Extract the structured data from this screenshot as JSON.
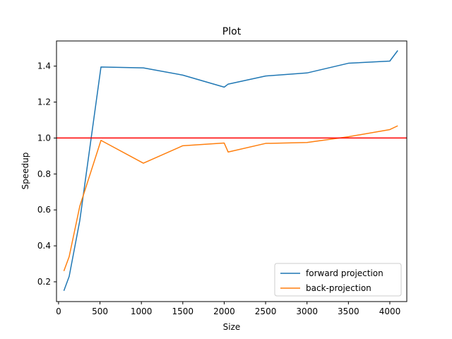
{
  "chart_data": {
    "type": "line",
    "title": "Plot",
    "xlabel": "Size",
    "ylabel": "Speedup",
    "xlim": [
      -25,
      4205
    ],
    "ylim": [
      0.09,
      1.54
    ],
    "xticks": [
      0,
      500,
      1000,
      1500,
      2000,
      2500,
      3000,
      3500,
      4000
    ],
    "yticks": [
      0.2,
      0.4,
      0.6,
      0.8,
      1.0,
      1.2,
      1.4
    ],
    "ytick_labels": [
      "0.2",
      "0.4",
      "0.6",
      "0.8",
      "1.0",
      "1.2",
      "1.4"
    ],
    "grid": false,
    "legend_position": "lower-right",
    "reference_line": {
      "y": 1.0,
      "color": "#ff0000"
    },
    "series": [
      {
        "name": "forward projection",
        "color": "#1f77b4",
        "x": [
          64,
          128,
          256,
          512,
          1024,
          1500,
          2000,
          2048,
          2500,
          3000,
          3500,
          4000,
          4096
        ],
        "y": [
          0.15,
          0.23,
          0.54,
          1.395,
          1.39,
          1.35,
          1.283,
          1.3,
          1.345,
          1.362,
          1.416,
          1.428,
          1.487
        ]
      },
      {
        "name": "back-projection",
        "color": "#ff7f0e",
        "x": [
          64,
          128,
          256,
          512,
          1024,
          1500,
          2000,
          2048,
          2500,
          3000,
          3500,
          4000,
          4096
        ],
        "y": [
          0.26,
          0.34,
          0.62,
          0.987,
          0.86,
          0.957,
          0.972,
          0.922,
          0.97,
          0.975,
          1.007,
          1.047,
          1.068
        ]
      }
    ]
  }
}
